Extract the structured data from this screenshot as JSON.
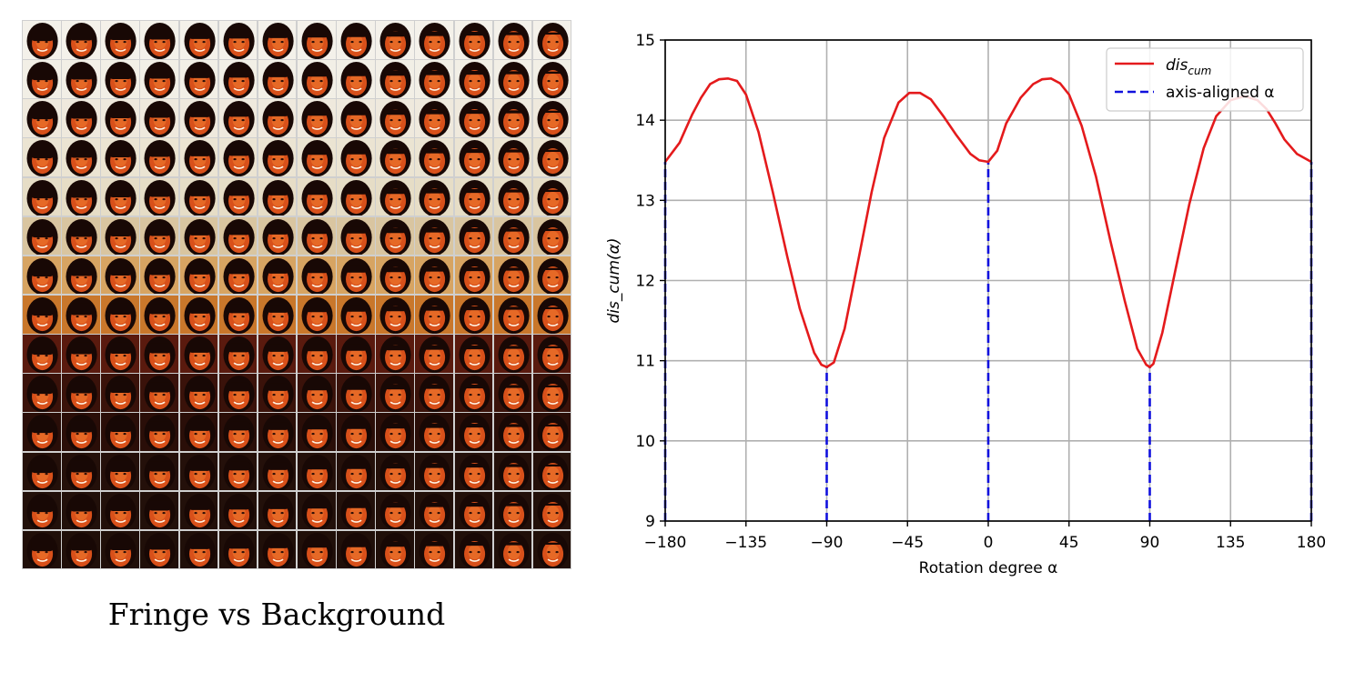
{
  "figure": {
    "caption": "Fringe vs Background",
    "grid": {
      "rows": 14,
      "cols": 14,
      "subject": "face",
      "row_axis": "fringe",
      "col_axis": "background"
    }
  },
  "colors": {
    "curve": "#e41a1c",
    "aligned": "#1010dd",
    "grid": "#b0b0b0"
  },
  "chart_data": {
    "type": "line",
    "xlabel": "Rotation degree α",
    "ylabel": "dis_cum(α)",
    "xlim": [
      -180,
      180
    ],
    "ylim": [
      9,
      15
    ],
    "xticks": [
      -180,
      -135,
      -90,
      -45,
      0,
      45,
      90,
      135,
      180
    ],
    "xtick_labels": [
      "−180",
      "−135",
      "−90",
      "−45",
      "0",
      "45",
      "90",
      "135",
      "180"
    ],
    "yticks": [
      9,
      10,
      11,
      12,
      13,
      14,
      15
    ],
    "ytick_labels": [
      "9",
      "10",
      "11",
      "12",
      "13",
      "14",
      "15"
    ],
    "grid": true,
    "legend_position": "top-right",
    "series": [
      {
        "name": "dis_cum",
        "legend_base": "dis",
        "legend_sub": "cum",
        "style": "solid",
        "x": [
          -180,
          -172,
          -165,
          -160,
          -155,
          -150,
          -145,
          -140,
          -135,
          -128,
          -120,
          -112,
          -105,
          -97,
          -93,
          -90,
          -86,
          -80,
          -72,
          -65,
          -58,
          -50,
          -44,
          -38,
          -32,
          -25,
          -18,
          -10,
          -5,
          0,
          5,
          10,
          18,
          25,
          30,
          35,
          40,
          45,
          52,
          60,
          68,
          76,
          83,
          88,
          90,
          92,
          97,
          104,
          112,
          120,
          127,
          135,
          143,
          150,
          155,
          160,
          165,
          172,
          180
        ],
        "y": [
          13.48,
          13.72,
          14.07,
          14.28,
          14.45,
          14.51,
          14.52,
          14.49,
          14.32,
          13.85,
          13.1,
          12.3,
          11.65,
          11.1,
          10.95,
          10.92,
          10.98,
          11.4,
          12.3,
          13.1,
          13.78,
          14.22,
          14.34,
          14.34,
          14.26,
          14.05,
          13.82,
          13.58,
          13.5,
          13.48,
          13.62,
          13.96,
          14.28,
          14.45,
          14.51,
          14.52,
          14.46,
          14.32,
          13.93,
          13.3,
          12.5,
          11.75,
          11.15,
          10.95,
          10.92,
          10.96,
          11.35,
          12.1,
          12.95,
          13.65,
          14.05,
          14.25,
          14.3,
          14.25,
          14.14,
          13.96,
          13.76,
          13.58,
          13.48
        ]
      },
      {
        "name": "axis-aligned α",
        "legend_base": "axis-aligned α",
        "style": "dashed",
        "vlines": [
          -180,
          -90,
          0,
          90,
          180
        ]
      }
    ]
  }
}
